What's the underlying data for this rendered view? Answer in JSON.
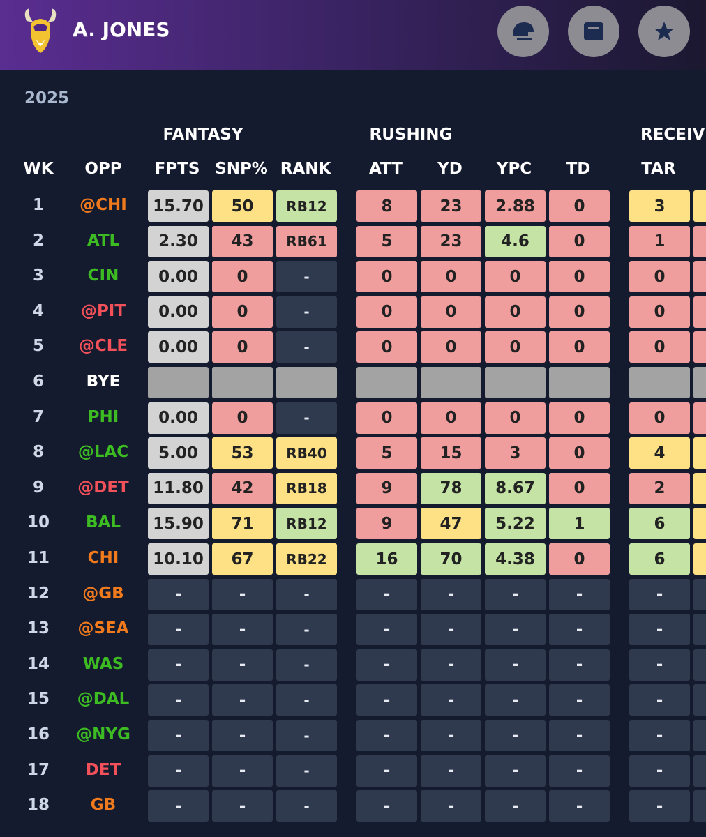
{
  "header": {
    "player": "A. JONES"
  },
  "season": "2025",
  "groups": [
    "FANTASY",
    "RUSHING",
    "RECEIVING"
  ],
  "columns": [
    "WK",
    "OPP",
    "FPTS",
    "SNP%",
    "RANK",
    "ATT",
    "YD",
    "YPC",
    "TD",
    "TAR"
  ],
  "rows": [
    {
      "wk": "1",
      "opp": "@CHI",
      "opp_tone": "orange",
      "cells": [
        "15.70",
        "50",
        "RB12",
        "8",
        "23",
        "2.88",
        "0",
        "3"
      ],
      "tones": [
        "g",
        "y",
        "gr",
        "r",
        "r",
        "r",
        "r",
        "y",
        "y"
      ]
    },
    {
      "wk": "2",
      "opp": "ATL",
      "opp_tone": "green",
      "cells": [
        "2.30",
        "43",
        "RB61",
        "5",
        "23",
        "4.6",
        "0",
        "1"
      ],
      "tones": [
        "g",
        "r",
        "r",
        "r",
        "r",
        "gr",
        "r",
        "r",
        "r"
      ]
    },
    {
      "wk": "3",
      "opp": "CIN",
      "opp_tone": "green",
      "cells": [
        "0.00",
        "0",
        "-",
        "0",
        "0",
        "0",
        "0",
        "0"
      ],
      "tones": [
        "g",
        "r",
        "d",
        "r",
        "r",
        "r",
        "r",
        "r",
        "r"
      ]
    },
    {
      "wk": "4",
      "opp": "@PIT",
      "opp_tone": "red",
      "cells": [
        "0.00",
        "0",
        "-",
        "0",
        "0",
        "0",
        "0",
        "0"
      ],
      "tones": [
        "g",
        "r",
        "d",
        "r",
        "r",
        "r",
        "r",
        "r",
        "r"
      ]
    },
    {
      "wk": "5",
      "opp": "@CLE",
      "opp_tone": "red",
      "cells": [
        "0.00",
        "0",
        "-",
        "0",
        "0",
        "0",
        "0",
        "0"
      ],
      "tones": [
        "g",
        "r",
        "d",
        "r",
        "r",
        "r",
        "r",
        "r",
        "r"
      ]
    },
    {
      "wk": "6",
      "opp": "BYE",
      "opp_tone": "white",
      "cells": [],
      "tones": [
        "b",
        "b",
        "b",
        "b",
        "b",
        "b",
        "b",
        "b",
        "b"
      ]
    },
    {
      "wk": "7",
      "opp": "PHI",
      "opp_tone": "green",
      "cells": [
        "0.00",
        "0",
        "-",
        "0",
        "0",
        "0",
        "0",
        "0"
      ],
      "tones": [
        "g",
        "r",
        "d",
        "r",
        "r",
        "r",
        "r",
        "r",
        "r"
      ]
    },
    {
      "wk": "8",
      "opp": "@LAC",
      "opp_tone": "green",
      "cells": [
        "5.00",
        "53",
        "RB40",
        "5",
        "15",
        "3",
        "0",
        "4"
      ],
      "tones": [
        "g",
        "y",
        "y",
        "r",
        "r",
        "r",
        "r",
        "y",
        "y"
      ]
    },
    {
      "wk": "9",
      "opp": "@DET",
      "opp_tone": "red",
      "cells": [
        "11.80",
        "42",
        "RB18",
        "9",
        "78",
        "8.67",
        "0",
        "2"
      ],
      "tones": [
        "g",
        "r",
        "y",
        "r",
        "gr",
        "gr",
        "r",
        "r",
        "y"
      ]
    },
    {
      "wk": "10",
      "opp": "BAL",
      "opp_tone": "green",
      "cells": [
        "15.90",
        "71",
        "RB12",
        "9",
        "47",
        "5.22",
        "1",
        "6"
      ],
      "tones": [
        "g",
        "y",
        "gr",
        "r",
        "y",
        "gr",
        "gr",
        "gr",
        "y"
      ]
    },
    {
      "wk": "11",
      "opp": "CHI",
      "opp_tone": "orange",
      "cells": [
        "10.10",
        "67",
        "RB22",
        "16",
        "70",
        "4.38",
        "0",
        "6"
      ],
      "tones": [
        "g",
        "y",
        "y",
        "gr",
        "gr",
        "gr",
        "r",
        "gr",
        "y"
      ]
    },
    {
      "wk": "12",
      "opp": "@GB",
      "opp_tone": "orange",
      "cells": [
        "-",
        "-",
        "-",
        "-",
        "-",
        "-",
        "-",
        "-"
      ],
      "tones": [
        "d",
        "d",
        "d",
        "d",
        "d",
        "d",
        "d",
        "d",
        "d"
      ]
    },
    {
      "wk": "13",
      "opp": "@SEA",
      "opp_tone": "orange",
      "cells": [
        "-",
        "-",
        "-",
        "-",
        "-",
        "-",
        "-",
        "-"
      ],
      "tones": [
        "d",
        "d",
        "d",
        "d",
        "d",
        "d",
        "d",
        "d",
        "d"
      ]
    },
    {
      "wk": "14",
      "opp": "WAS",
      "opp_tone": "green",
      "cells": [
        "-",
        "-",
        "-",
        "-",
        "-",
        "-",
        "-",
        "-"
      ],
      "tones": [
        "d",
        "d",
        "d",
        "d",
        "d",
        "d",
        "d",
        "d",
        "d"
      ]
    },
    {
      "wk": "15",
      "opp": "@DAL",
      "opp_tone": "green",
      "cells": [
        "-",
        "-",
        "-",
        "-",
        "-",
        "-",
        "-",
        "-"
      ],
      "tones": [
        "d",
        "d",
        "d",
        "d",
        "d",
        "d",
        "d",
        "d",
        "d"
      ]
    },
    {
      "wk": "16",
      "opp": "@NYG",
      "opp_tone": "green",
      "cells": [
        "-",
        "-",
        "-",
        "-",
        "-",
        "-",
        "-",
        "-"
      ],
      "tones": [
        "d",
        "d",
        "d",
        "d",
        "d",
        "d",
        "d",
        "d",
        "d"
      ]
    },
    {
      "wk": "17",
      "opp": "DET",
      "opp_tone": "red",
      "cells": [
        "-",
        "-",
        "-",
        "-",
        "-",
        "-",
        "-",
        "-"
      ],
      "tones": [
        "d",
        "d",
        "d",
        "d",
        "d",
        "d",
        "d",
        "d",
        "d"
      ]
    },
    {
      "wk": "18",
      "opp": "GB",
      "opp_tone": "orange",
      "cells": [
        "-",
        "-",
        "-",
        "-",
        "-",
        "-",
        "-",
        "-"
      ],
      "tones": [
        "d",
        "d",
        "d",
        "d",
        "d",
        "d",
        "d",
        "d",
        "d"
      ]
    }
  ]
}
